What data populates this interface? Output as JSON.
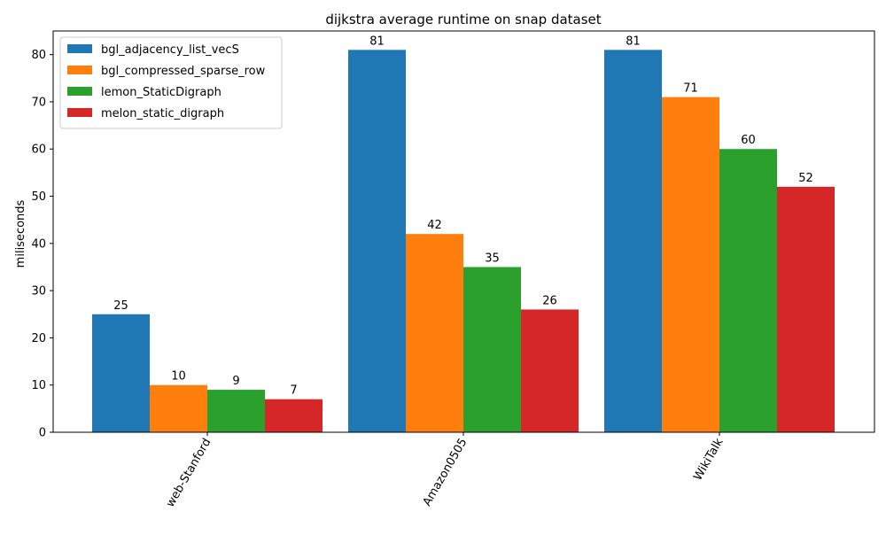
{
  "chart_data": {
    "type": "bar",
    "title": "dijkstra average runtime on snap dataset",
    "xlabel": "",
    "ylabel": "miliseconds",
    "ylim": [
      0,
      85
    ],
    "yticks": [
      0,
      10,
      20,
      30,
      40,
      50,
      60,
      70,
      80
    ],
    "categories": [
      "web-Stanford",
      "Amazon0505",
      "WikiTalk"
    ],
    "series": [
      {
        "name": "bgl_adjacency_list_vecS",
        "color": "#1f77b4",
        "values": [
          25,
          81,
          81
        ]
      },
      {
        "name": "bgl_compressed_sparse_row",
        "color": "#ff7f0e",
        "values": [
          10,
          42,
          71
        ]
      },
      {
        "name": "lemon_StaticDigraph",
        "color": "#2ca02c",
        "values": [
          9,
          35,
          60
        ]
      },
      {
        "name": "melon_static_digraph",
        "color": "#d62728",
        "values": [
          7,
          26,
          52
        ]
      }
    ],
    "legend_position": "top-left",
    "grid": false,
    "x_tick_rotation_deg": 60
  }
}
